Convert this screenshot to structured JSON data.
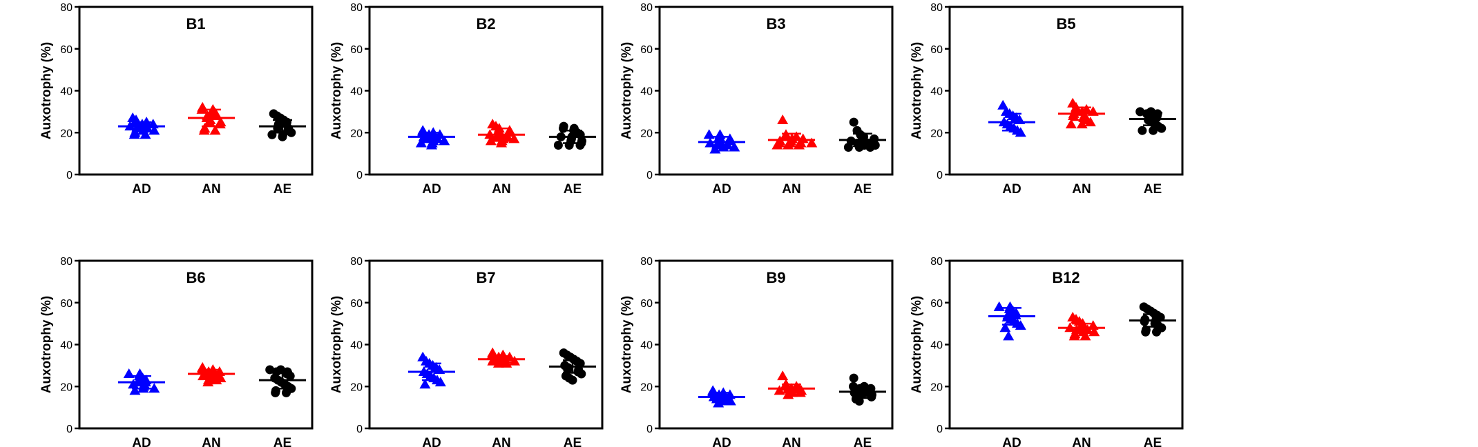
{
  "chart_data": [
    {
      "type": "scatter",
      "title": "B1",
      "ylabel": "Auxotrophy (%)",
      "ylim": [
        0,
        80
      ],
      "yticks": [
        0,
        20,
        40,
        60,
        80
      ],
      "categories": [
        "AD",
        "AN",
        "AE"
      ],
      "series": [
        {
          "category": "AD",
          "marker": "triangle",
          "color": "#0000ff",
          "mean": 23,
          "sd": 2,
          "values": [
            27,
            26,
            25,
            25,
            24,
            24,
            23,
            23,
            22,
            22,
            21,
            21,
            20,
            19,
            19
          ]
        },
        {
          "category": "AN",
          "marker": "triangle",
          "color": "#ff0000",
          "mean": 27,
          "sd": 4,
          "values": [
            32,
            31,
            31,
            30,
            29,
            28,
            28,
            27,
            26,
            25,
            25,
            24,
            22,
            21,
            21
          ]
        },
        {
          "category": "AE",
          "marker": "circle",
          "color": "#000000",
          "mean": 23,
          "sd": 3,
          "values": [
            29,
            28,
            27,
            26,
            25,
            24,
            24,
            23,
            22,
            22,
            21,
            20,
            19,
            19,
            18
          ]
        }
      ]
    },
    {
      "type": "scatter",
      "title": "B2",
      "ylabel": "Auxotrophy (%)",
      "ylim": [
        0,
        80
      ],
      "yticks": [
        0,
        20,
        40,
        60,
        80
      ],
      "categories": [
        "AD",
        "AN",
        "AE"
      ],
      "series": [
        {
          "category": "AD",
          "marker": "triangle",
          "color": "#0000ff",
          "mean": 18,
          "sd": 2,
          "values": [
            21,
            20,
            20,
            19,
            19,
            18,
            18,
            18,
            17,
            17,
            16,
            16,
            15,
            15,
            14
          ]
        },
        {
          "category": "AN",
          "marker": "triangle",
          "color": "#ff0000",
          "mean": 19,
          "sd": 3,
          "values": [
            24,
            23,
            22,
            21,
            21,
            20,
            19,
            19,
            18,
            18,
            17,
            17,
            16,
            16,
            15
          ]
        },
        {
          "category": "AE",
          "marker": "circle",
          "color": "#000000",
          "mean": 18,
          "sd": 3,
          "values": [
            23,
            22,
            22,
            21,
            20,
            19,
            18,
            18,
            17,
            16,
            16,
            15,
            14,
            14,
            14
          ]
        }
      ]
    },
    {
      "type": "scatter",
      "title": "B3",
      "ylabel": "Auxotrophy (%)",
      "ylim": [
        0,
        80
      ],
      "yticks": [
        0,
        20,
        40,
        60,
        80
      ],
      "categories": [
        "AD",
        "AN",
        "AE"
      ],
      "series": [
        {
          "category": "AD",
          "marker": "triangle",
          "color": "#0000ff",
          "mean": 15.5,
          "sd": 2.5,
          "values": [
            19,
            19,
            18,
            17,
            17,
            16,
            15,
            15,
            14,
            14,
            13,
            13,
            12
          ]
        },
        {
          "category": "AN",
          "marker": "triangle",
          "color": "#ff0000",
          "mean": 16.5,
          "sd": 3,
          "values": [
            26,
            19,
            18,
            18,
            17,
            17,
            16,
            16,
            15,
            15,
            15,
            15,
            14,
            14,
            14
          ]
        },
        {
          "category": "AE",
          "marker": "circle",
          "color": "#000000",
          "mean": 16.5,
          "sd": 3,
          "values": [
            25,
            21,
            19,
            18,
            17,
            17,
            16,
            16,
            15,
            15,
            14,
            14,
            13,
            13,
            13
          ]
        }
      ]
    },
    {
      "type": "scatter",
      "title": "B5",
      "ylabel": "Auxotrophy (%)",
      "ylim": [
        0,
        80
      ],
      "yticks": [
        0,
        20,
        40,
        60,
        80
      ],
      "categories": [
        "AD",
        "AN",
        "AE"
      ],
      "series": [
        {
          "category": "AD",
          "marker": "triangle",
          "color": "#0000ff",
          "mean": 25,
          "sd": 4,
          "values": [
            33,
            30,
            29,
            28,
            27,
            26,
            25,
            24,
            23,
            22,
            21,
            20
          ]
        },
        {
          "category": "AN",
          "marker": "triangle",
          "color": "#ff0000",
          "mean": 29,
          "sd": 3,
          "values": [
            34,
            32,
            31,
            31,
            30,
            30,
            29,
            28,
            28,
            27,
            26,
            25,
            24,
            24
          ]
        },
        {
          "category": "AE",
          "marker": "circle",
          "color": "#000000",
          "mean": 26.5,
          "sd": 3,
          "values": [
            30,
            30,
            29,
            29,
            28,
            27,
            27,
            26,
            25,
            24,
            23,
            22,
            21,
            21
          ]
        }
      ]
    },
    {
      "type": "scatter",
      "title": "B6",
      "ylabel": "Auxotrophy (%)",
      "ylim": [
        0,
        80
      ],
      "yticks": [
        0,
        20,
        40,
        60,
        80
      ],
      "categories": [
        "AD",
        "AN",
        "AE"
      ],
      "series": [
        {
          "category": "AD",
          "marker": "triangle",
          "color": "#0000ff",
          "mean": 22,
          "sd": 3,
          "values": [
            26,
            26,
            25,
            24,
            23,
            22,
            22,
            21,
            21,
            20,
            19,
            19,
            18
          ]
        },
        {
          "category": "AN",
          "marker": "triangle",
          "color": "#ff0000",
          "mean": 26,
          "sd": 2,
          "values": [
            29,
            28,
            28,
            27,
            27,
            26,
            26,
            25,
            25,
            24,
            24,
            23,
            23,
            22
          ]
        },
        {
          "category": "AE",
          "marker": "circle",
          "color": "#000000",
          "mean": 23,
          "sd": 4,
          "values": [
            28,
            28,
            27,
            27,
            26,
            25,
            24,
            23,
            22,
            21,
            20,
            19,
            18,
            17,
            17
          ]
        }
      ]
    },
    {
      "type": "scatter",
      "title": "B7",
      "ylabel": "Auxotrophy (%)",
      "ylim": [
        0,
        80
      ],
      "yticks": [
        0,
        20,
        40,
        60,
        80
      ],
      "categories": [
        "AD",
        "AN",
        "AE"
      ],
      "series": [
        {
          "category": "AD",
          "marker": "triangle",
          "color": "#0000ff",
          "mean": 27,
          "sd": 4,
          "values": [
            34,
            32,
            31,
            30,
            29,
            28,
            27,
            26,
            25,
            24,
            23,
            22,
            21
          ]
        },
        {
          "category": "AN",
          "marker": "triangle",
          "color": "#ff0000",
          "mean": 33,
          "sd": 1.5,
          "values": [
            36,
            35,
            35,
            34,
            34,
            33,
            33,
            33,
            32,
            32,
            32,
            31,
            31
          ]
        },
        {
          "category": "AE",
          "marker": "circle",
          "color": "#000000",
          "mean": 29.5,
          "sd": 3,
          "values": [
            36,
            35,
            34,
            33,
            32,
            31,
            30,
            29,
            28,
            28,
            27,
            26,
            25,
            24,
            23
          ]
        }
      ]
    },
    {
      "type": "scatter",
      "title": "B9",
      "ylabel": "Auxotrophy (%)",
      "ylim": [
        0,
        80
      ],
      "yticks": [
        0,
        20,
        40,
        60,
        80
      ],
      "categories": [
        "AD",
        "AN",
        "AE"
      ],
      "series": [
        {
          "category": "AD",
          "marker": "triangle",
          "color": "#0000ff",
          "mean": 15,
          "sd": 2,
          "values": [
            18,
            17,
            17,
            16,
            16,
            15,
            15,
            15,
            14,
            14,
            13,
            13,
            13,
            12
          ]
        },
        {
          "category": "AN",
          "marker": "triangle",
          "color": "#ff0000",
          "mean": 19,
          "sd": 2,
          "values": [
            25,
            21,
            20,
            20,
            19,
            19,
            19,
            18,
            18,
            18,
            17,
            17,
            17,
            16
          ]
        },
        {
          "category": "AE",
          "marker": "circle",
          "color": "#000000",
          "mean": 17.5,
          "sd": 3,
          "values": [
            24,
            20,
            20,
            19,
            19,
            18,
            18,
            17,
            17,
            16,
            16,
            15,
            14,
            13
          ]
        }
      ]
    },
    {
      "type": "scatter",
      "title": "B12",
      "ylabel": "Auxotrophy (%)",
      "ylim": [
        0,
        80
      ],
      "yticks": [
        0,
        20,
        40,
        60,
        80
      ],
      "categories": [
        "AD",
        "AN",
        "AE"
      ],
      "series": [
        {
          "category": "AD",
          "marker": "triangle",
          "color": "#0000ff",
          "mean": 53.5,
          "sd": 4,
          "values": [
            58,
            58,
            57,
            56,
            55,
            54,
            54,
            53,
            52,
            51,
            50,
            49,
            48,
            44
          ]
        },
        {
          "category": "AN",
          "marker": "triangle",
          "color": "#ff0000",
          "mean": 48,
          "sd": 2,
          "values": [
            53,
            52,
            51,
            50,
            49,
            49,
            48,
            48,
            47,
            47,
            46,
            46,
            45,
            44,
            44
          ]
        },
        {
          "category": "AE",
          "marker": "circle",
          "color": "#000000",
          "mean": 51.5,
          "sd": 3,
          "values": [
            58,
            57,
            56,
            55,
            54,
            53,
            52,
            51,
            51,
            50,
            49,
            48,
            47,
            46,
            46
          ]
        }
      ]
    }
  ]
}
